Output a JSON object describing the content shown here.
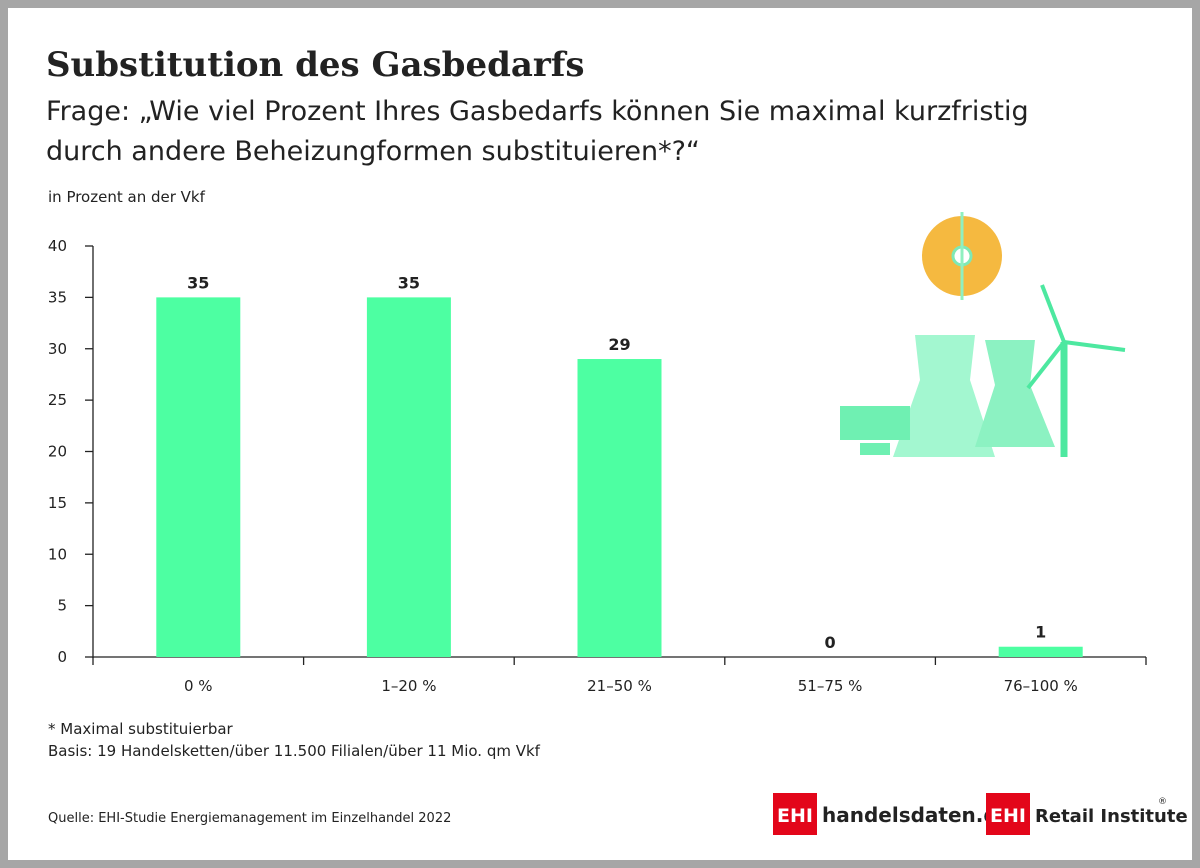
{
  "chart_data": {
    "type": "bar",
    "title": "Substitution des Gasbedarfs",
    "subtitle": [
      "Frage: „Wie viel Prozent Ihres Gasbedarfs können Sie maximal kurzfristig",
      "durch andere Beheizungformen substituieren*?“"
    ],
    "y_label": "in Prozent an der Vkf",
    "categories": [
      "0 %",
      "1–20 %",
      "21–50 %",
      "51–75 %",
      "76–100 %"
    ],
    "values": [
      35,
      35,
      29,
      0,
      1
    ],
    "color": "#4dffa2",
    "ylim": [
      0,
      40
    ],
    "yticks": [
      0,
      5,
      10,
      15,
      20,
      25,
      30,
      35,
      40
    ],
    "grid": false,
    "footnotes": [
      "*  Maximal substituierbar",
      "Basis: 19 Handelsketten/über 11.500 Filialen/über 11 Mio. qm Vkf"
    ],
    "source": "Quelle: EHI-Studie Energiemanagement im Einzelhandel 2022",
    "logos": [
      {
        "badge": "EHI",
        "text": "handelsdaten.de"
      },
      {
        "badge": "EHI",
        "text": "Retail Institute",
        "mark": "®"
      }
    ]
  }
}
